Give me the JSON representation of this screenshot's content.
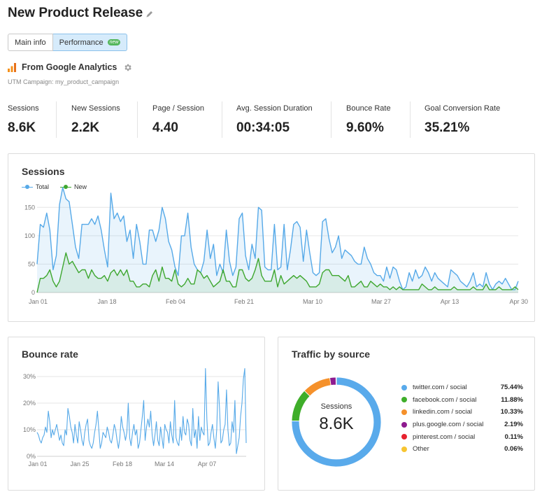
{
  "page": {
    "title": "New Product Release"
  },
  "tabs": [
    {
      "label": "Main info",
      "active": false
    },
    {
      "label": "Performance",
      "active": true,
      "badge": "new"
    }
  ],
  "analytics": {
    "title": "From Google Analytics",
    "utm": "UTM Campaign: my_product_campaign"
  },
  "metrics": [
    {
      "label": "Sessions",
      "value": "8.6K"
    },
    {
      "label": "New Sessions",
      "value": "2.2K"
    },
    {
      "label": "Page / Session",
      "value": "4.40"
    },
    {
      "label": "Avg. Session Duration",
      "value": "00:34:05"
    },
    {
      "label": "Bounce Rate",
      "value": "9.60%"
    },
    {
      "label": "Goal Conversion Rate",
      "value": "35.21%"
    }
  ],
  "colors": {
    "total": "#56a9e8",
    "new": "#3ea72f",
    "grid": "#e6e6e6"
  },
  "sessions_card": {
    "title": "Sessions",
    "legend": [
      "Total",
      "New"
    ]
  },
  "bounce_card": {
    "title": "Bounce rate"
  },
  "traffic_card": {
    "title": "Traffic by source",
    "center_label": "Sessions",
    "center_value": "8.6K",
    "sources": [
      {
        "name": "twitter.com / social",
        "pct": "75.44%",
        "value": 75.44,
        "color": "#59aaeb"
      },
      {
        "name": "facebook.com / social",
        "pct": "11.88%",
        "value": 11.88,
        "color": "#3fae2a"
      },
      {
        "name": "linkedin.com / social",
        "pct": "10.33%",
        "value": 10.33,
        "color": "#f5912b"
      },
      {
        "name": "plus.google.com / social",
        "pct": "2.19%",
        "value": 2.19,
        "color": "#8e1b8f"
      },
      {
        "name": "pinterest.com / social",
        "pct": "0.11%",
        "value": 0.11,
        "color": "#e7222e"
      },
      {
        "name": "Other",
        "pct": "0.06%",
        "value": 0.06,
        "color": "#f7c531"
      }
    ]
  },
  "chart_data": [
    {
      "type": "line",
      "title": "Sessions",
      "x_tick_labels": [
        "Jan 01",
        "Jan 18",
        "Feb 04",
        "Feb 21",
        "Mar 10",
        "Mar 27",
        "Apr 13",
        "Apr 30"
      ],
      "ylim": [
        0,
        175
      ],
      "y_ticks": [
        0,
        50,
        100,
        150
      ],
      "grid": true,
      "legend_position": "top-left",
      "series": [
        {
          "name": "Total",
          "values": [
            50,
            120,
            115,
            140,
            110,
            40,
            65,
            155,
            185,
            165,
            160,
            120,
            80,
            60,
            120,
            120,
            120,
            130,
            120,
            135,
            110,
            75,
            45,
            175,
            130,
            140,
            125,
            135,
            90,
            110,
            60,
            120,
            90,
            50,
            50,
            110,
            110,
            90,
            110,
            150,
            130,
            90,
            75,
            45,
            30,
            100,
            100,
            140,
            80,
            50,
            40,
            35,
            55,
            110,
            60,
            85,
            30,
            50,
            35,
            110,
            55,
            30,
            45,
            130,
            140,
            65,
            40,
            85,
            60,
            150,
            145,
            45,
            40,
            40,
            120,
            40,
            45,
            120,
            40,
            75,
            120,
            125,
            115,
            55,
            110,
            70,
            35,
            30,
            35,
            125,
            130,
            95,
            70,
            80,
            100,
            60,
            75,
            70,
            65,
            55,
            50,
            50,
            80,
            60,
            50,
            35,
            30,
            30,
            20,
            45,
            25,
            45,
            40,
            20,
            5,
            10,
            35,
            20,
            40,
            25,
            30,
            45,
            35,
            20,
            35,
            25,
            20,
            15,
            10,
            40,
            35,
            30,
            20,
            15,
            10,
            20,
            35,
            10,
            15,
            10,
            35,
            15,
            5,
            15,
            20,
            15,
            25,
            15,
            5,
            5,
            20
          ]
        },
        {
          "name": "New",
          "values": [
            0,
            25,
            25,
            30,
            40,
            20,
            10,
            20,
            45,
            70,
            50,
            55,
            45,
            35,
            40,
            40,
            25,
            40,
            30,
            25,
            25,
            30,
            20,
            35,
            40,
            30,
            40,
            30,
            40,
            20,
            20,
            10,
            10,
            15,
            15,
            10,
            30,
            40,
            20,
            45,
            25,
            25,
            20,
            40,
            15,
            10,
            15,
            25,
            15,
            15,
            40,
            35,
            25,
            30,
            20,
            10,
            15,
            20,
            40,
            20,
            20,
            10,
            10,
            40,
            40,
            25,
            20,
            25,
            40,
            60,
            30,
            20,
            20,
            20,
            40,
            10,
            30,
            15,
            20,
            25,
            30,
            25,
            30,
            25,
            20,
            10,
            10,
            10,
            15,
            35,
            40,
            40,
            30,
            30,
            30,
            25,
            20,
            30,
            10,
            10,
            15,
            20,
            10,
            10,
            20,
            15,
            10,
            15,
            10,
            10,
            5,
            10,
            5,
            10,
            5,
            5,
            5,
            5,
            5,
            5,
            15,
            10,
            5,
            5,
            10,
            5,
            5,
            5,
            5,
            5,
            10,
            5,
            5,
            5,
            5,
            5,
            10,
            5,
            5,
            5,
            15,
            5,
            5,
            5,
            10,
            5,
            5,
            5,
            5,
            10,
            5
          ]
        }
      ]
    },
    {
      "type": "line",
      "title": "Bounce rate",
      "x_tick_labels": [
        "Jan 01",
        "Jan 25",
        "Feb 18",
        "Mar 14",
        "Apr 07"
      ],
      "ylim": [
        0,
        35
      ],
      "y_ticks": [
        "0%",
        "10%",
        "20%",
        "30%"
      ],
      "grid": true,
      "series": [
        {
          "name": "",
          "values": [
            9,
            8,
            6,
            5,
            7,
            8,
            11,
            9,
            17,
            13,
            7,
            10,
            8,
            10,
            12,
            9,
            6,
            8,
            5,
            4,
            10,
            8,
            18,
            15,
            11,
            9,
            5,
            12,
            8,
            5,
            13,
            10,
            6,
            4,
            9,
            12,
            14,
            6,
            4,
            3,
            5,
            9,
            12,
            17,
            10,
            3,
            5,
            9,
            8,
            7,
            11,
            9,
            6,
            5,
            8,
            12,
            10,
            6,
            3,
            7,
            15,
            11,
            9,
            6,
            9,
            20,
            7,
            4,
            9,
            12,
            8,
            10,
            3,
            5,
            10,
            15,
            21,
            6,
            11,
            14,
            11,
            17,
            8,
            4,
            8,
            13,
            6,
            4,
            11,
            7,
            3,
            12,
            10,
            9,
            5,
            13,
            8,
            5,
            21,
            7,
            5,
            4,
            11,
            6,
            15,
            9,
            8,
            14,
            12,
            6,
            4,
            18,
            7,
            10,
            3,
            15,
            6,
            11,
            9,
            8,
            33,
            14,
            4,
            5,
            9,
            12,
            7,
            3,
            10,
            28,
            18,
            5,
            6,
            10,
            12,
            25,
            10,
            4,
            5,
            13,
            9,
            21,
            1,
            4,
            7,
            15,
            20,
            29,
            33,
            5
          ]
        }
      ]
    },
    {
      "type": "pie",
      "title": "Traffic by source",
      "categories": [
        "twitter.com / social",
        "facebook.com / social",
        "linkedin.com / social",
        "plus.google.com / social",
        "pinterest.com / social",
        "Other"
      ],
      "values": [
        75.44,
        11.88,
        10.33,
        2.19,
        0.11,
        0.06
      ]
    }
  ]
}
